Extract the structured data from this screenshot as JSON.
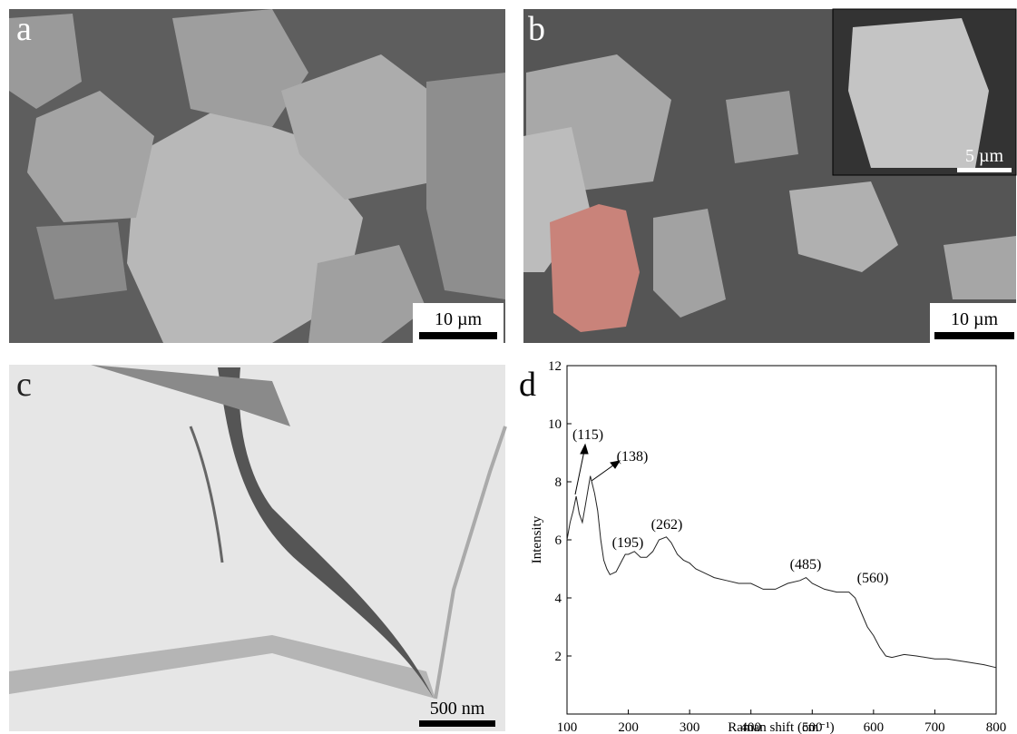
{
  "panels": [
    {
      "label": "a",
      "scale_bar": "10 µm"
    },
    {
      "label": "b",
      "scale_bar": "10 µm",
      "inset_scale_bar": "5 µm"
    },
    {
      "label": "c",
      "scale_bar": "500 nm"
    }
  ],
  "chart_data": {
    "type": "line",
    "label": "d",
    "x_label": "Raman shift (cm⁻¹)",
    "y_label": "Intensity",
    "color": "#222222",
    "x": [
      100,
      105,
      110,
      115,
      120,
      125,
      130,
      138,
      145,
      150,
      155,
      160,
      165,
      170,
      180,
      190,
      195,
      200,
      210,
      220,
      230,
      240,
      250,
      262,
      270,
      280,
      290,
      300,
      310,
      320,
      340,
      360,
      380,
      400,
      420,
      440,
      460,
      480,
      490,
      500,
      520,
      540,
      560,
      570,
      580,
      590,
      600,
      610,
      620,
      630,
      650,
      670,
      700,
      720,
      750,
      780,
      800
    ],
    "values": [
      6.0,
      6.6,
      7.0,
      7.5,
      6.9,
      6.6,
      7.2,
      8.2,
      7.6,
      7.0,
      6.0,
      5.3,
      5.0,
      4.8,
      4.9,
      5.3,
      5.5,
      5.5,
      5.6,
      5.4,
      5.4,
      5.6,
      6.0,
      6.1,
      5.9,
      5.5,
      5.3,
      5.2,
      5.0,
      4.9,
      4.7,
      4.6,
      4.5,
      4.5,
      4.3,
      4.3,
      4.5,
      4.6,
      4.7,
      4.5,
      4.3,
      4.2,
      4.2,
      4.0,
      3.5,
      3.0,
      2.7,
      2.3,
      2.0,
      1.95,
      2.05,
      2.0,
      1.9,
      1.9,
      1.8,
      1.7,
      1.6
    ],
    "annotations": [
      "(115)",
      "(138)",
      "(195)",
      "(262)",
      "(485)",
      "(560)"
    ],
    "xlim": [
      100,
      800
    ],
    "xticks": [
      100,
      200,
      300,
      400,
      500,
      600,
      700,
      800
    ],
    "ylim": [
      0,
      12
    ],
    "yticks": [
      2,
      4,
      6,
      8,
      10,
      12
    ]
  }
}
